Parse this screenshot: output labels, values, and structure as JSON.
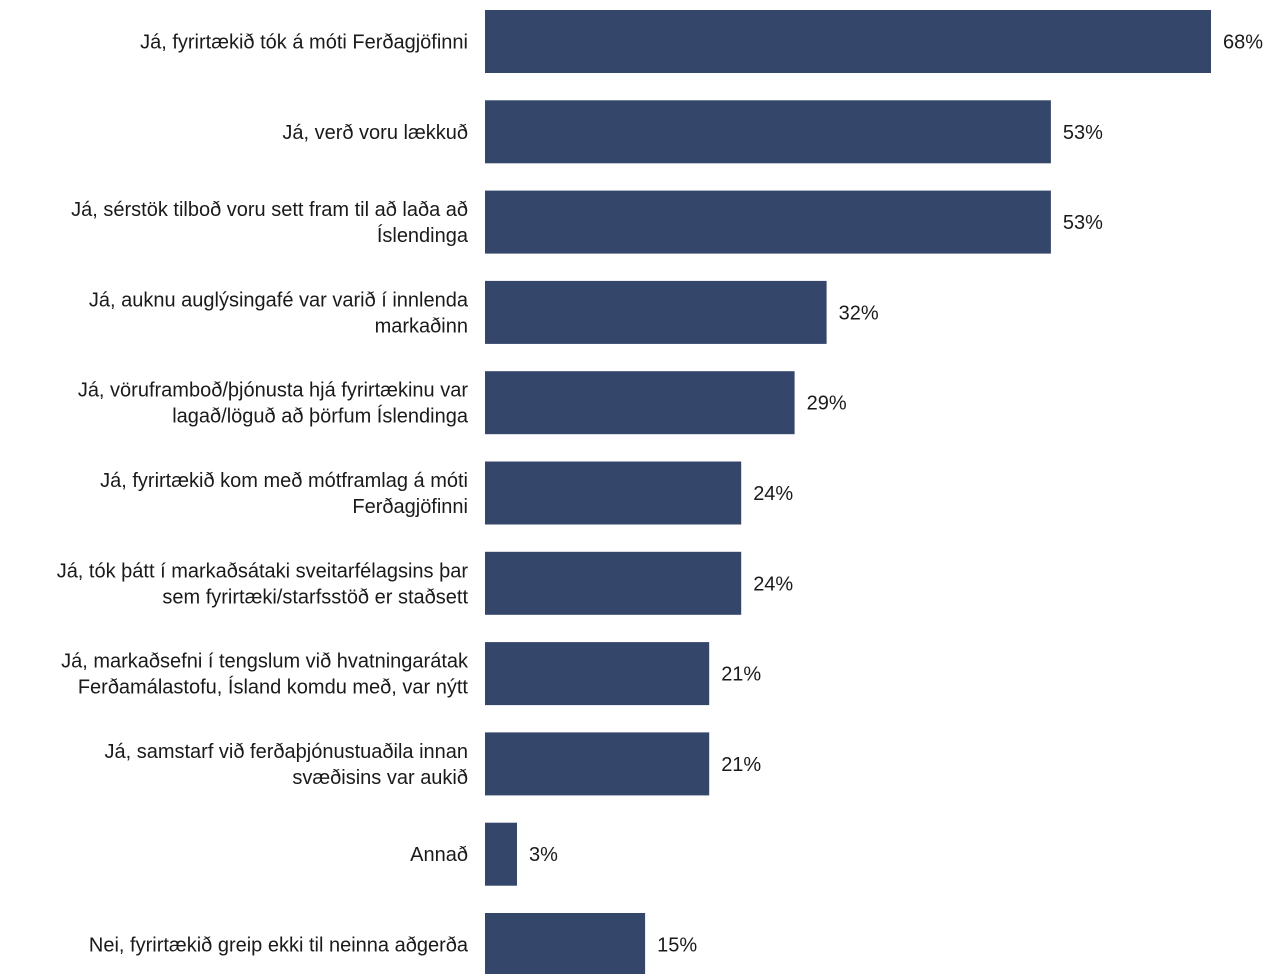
{
  "chart_data": {
    "type": "bar",
    "orientation": "horizontal",
    "title": "",
    "xlabel": "",
    "ylabel": "",
    "xlim": [
      0,
      68
    ],
    "grid": false,
    "legend": "none",
    "value_suffix": "%",
    "bar_color": "#34466a",
    "categories": [
      [
        "Já, fyrirtækið tók á móti Ferðagjöfinni"
      ],
      [
        "Já, verð voru lækkuð"
      ],
      [
        "Já, sérstök tilboð voru sett fram til að laða að",
        "Íslendinga"
      ],
      [
        "Já, auknu auglýsingafé var varið í innlenda",
        "markaðinn"
      ],
      [
        "Já, vöruframboð/þjónusta hjá fyrirtækinu var",
        "lagað/löguð að þörfum Íslendinga"
      ],
      [
        "Já, fyrirtækið kom með mótframlag á móti",
        "Ferðagjöfinni"
      ],
      [
        "Já, tók þátt í markaðsátaki sveitarfélagsins þar",
        "sem fyrirtæki/starfsstöð er staðsett"
      ],
      [
        "Já, markaðsefni í tengslum við hvatningarátak",
        "Ferðamálastofu, Ísland komdu með, var nýtt"
      ],
      [
        "Já, samstarf við ferðaþjónustuaðila innan",
        "svæðisins var aukið"
      ],
      [
        "Annað"
      ],
      [
        "Nei, fyrirtækið greip ekki til neinna aðgerða"
      ]
    ],
    "values": [
      68,
      53,
      53,
      32,
      29,
      24,
      24,
      21,
      21,
      3,
      15
    ]
  }
}
